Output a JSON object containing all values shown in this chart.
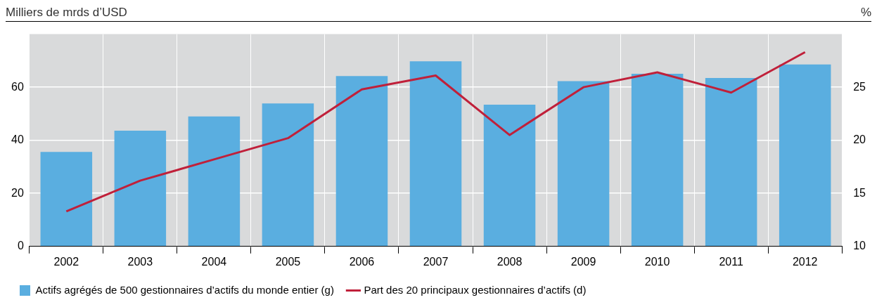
{
  "chart_data": {
    "type": "bar",
    "ylabel": "Milliers de mrds d’USD",
    "y2label": "%",
    "categories": [
      "2002",
      "2003",
      "2004",
      "2005",
      "2006",
      "2007",
      "2008",
      "2009",
      "2010",
      "2011",
      "2012"
    ],
    "series": [
      {
        "name": "Actifs agrégés de 500 gestionnaires d’actifs du monde entier (g)",
        "color": "#5aaee0",
        "values": [
          35.6,
          43.6,
          49,
          53.9,
          64.2,
          69.8,
          53.4,
          62.3,
          65.1,
          63.5,
          68.6
        ]
      },
      {
        "name": "Part des 20 principaux gestionnaires d’actifs (d)",
        "type": "line",
        "axis": "y2",
        "color": "#c0203a",
        "marker": "none",
        "values": [
          13.3,
          16.2,
          18.2,
          20.2,
          24.8,
          26.1,
          20.5,
          25.0,
          26.4,
          24.5,
          28.3
        ]
      }
    ],
    "ylim": [
      0,
      80
    ],
    "yticks": [
      0,
      20,
      40,
      60
    ],
    "y2lim": [
      10,
      30
    ],
    "y2ticks": [
      10,
      15,
      20,
      25
    ],
    "grid": true,
    "legend": "bottom"
  }
}
